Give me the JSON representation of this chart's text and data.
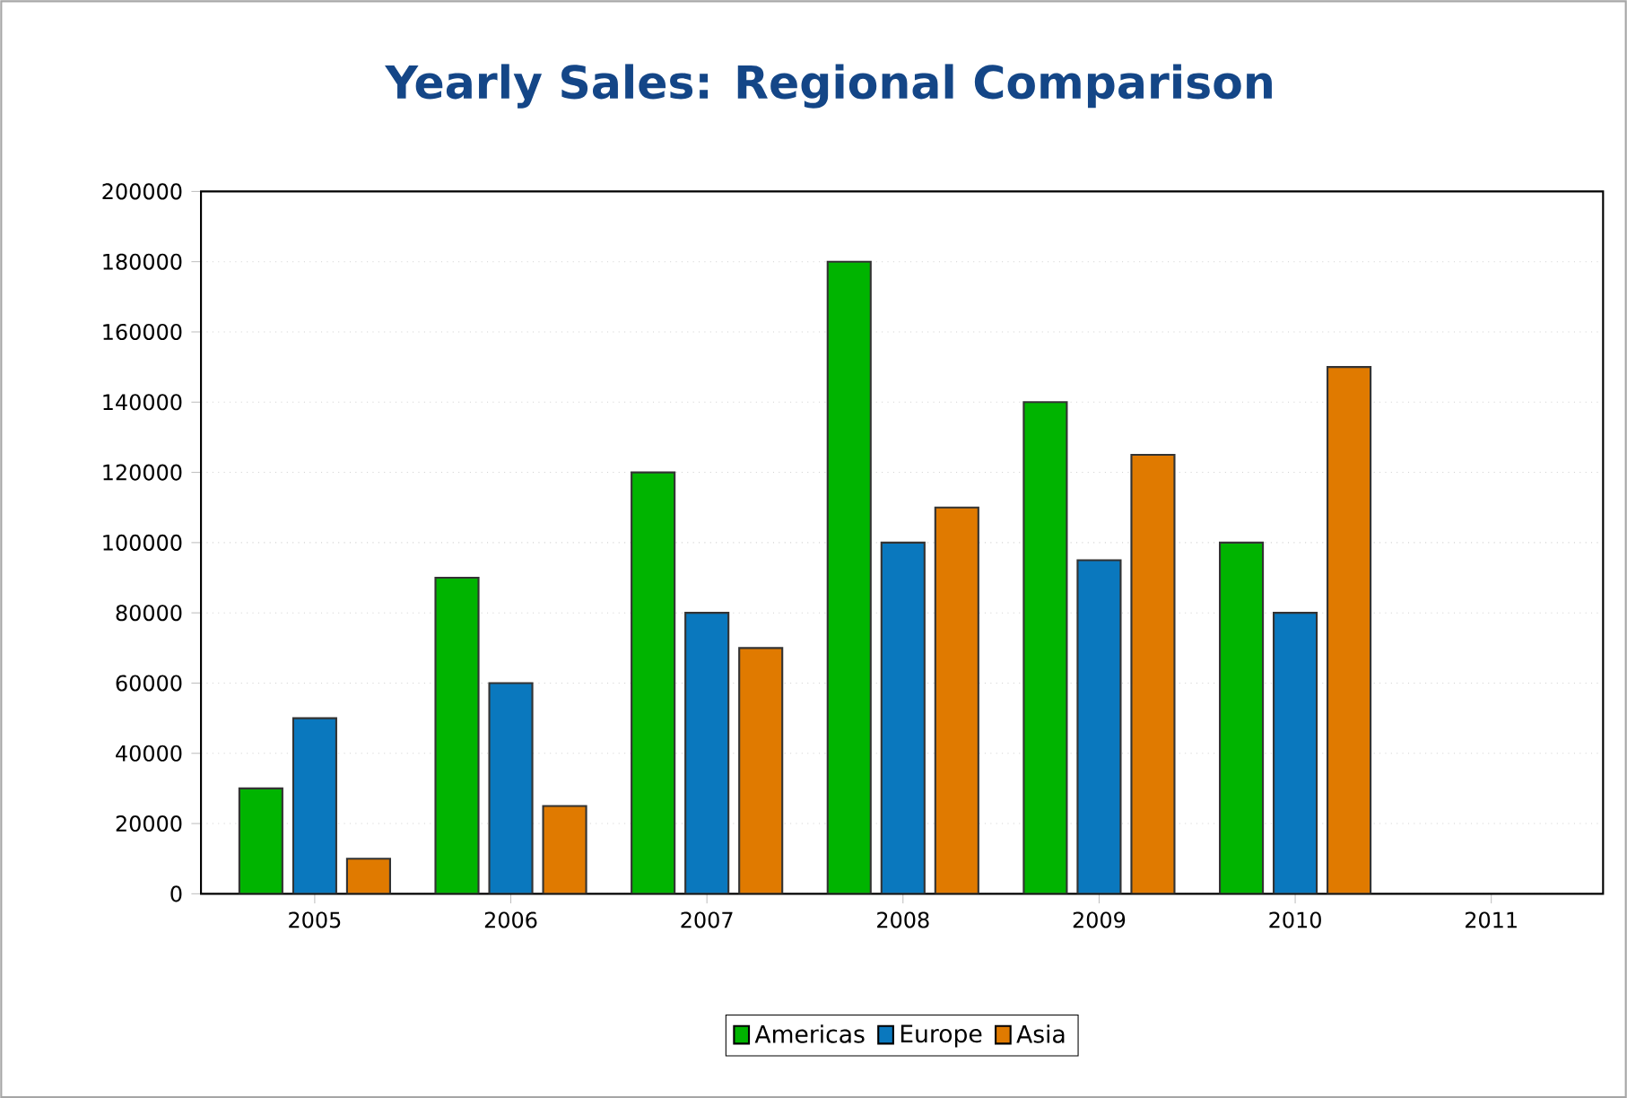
{
  "chart_data": {
    "type": "bar",
    "title": "Yearly Sales: Regional Comparison",
    "categories": [
      "2005",
      "2006",
      "2007",
      "2008",
      "2009",
      "2010",
      "2011"
    ],
    "series": [
      {
        "name": "Americas",
        "color": "#00b400",
        "values": [
          30000,
          90000,
          120000,
          180000,
          140000,
          100000,
          null
        ]
      },
      {
        "name": "Europe",
        "color": "#0a78be",
        "values": [
          50000,
          60000,
          80000,
          100000,
          95000,
          80000,
          null
        ]
      },
      {
        "name": "Asia",
        "color": "#e07a00",
        "values": [
          10000,
          25000,
          70000,
          110000,
          125000,
          150000,
          null
        ]
      }
    ],
    "ylim": [
      0,
      200000
    ],
    "yticks": [
      0,
      20000,
      40000,
      60000,
      80000,
      100000,
      120000,
      140000,
      160000,
      180000,
      200000
    ],
    "grid": "y",
    "legend": "bottom"
  }
}
